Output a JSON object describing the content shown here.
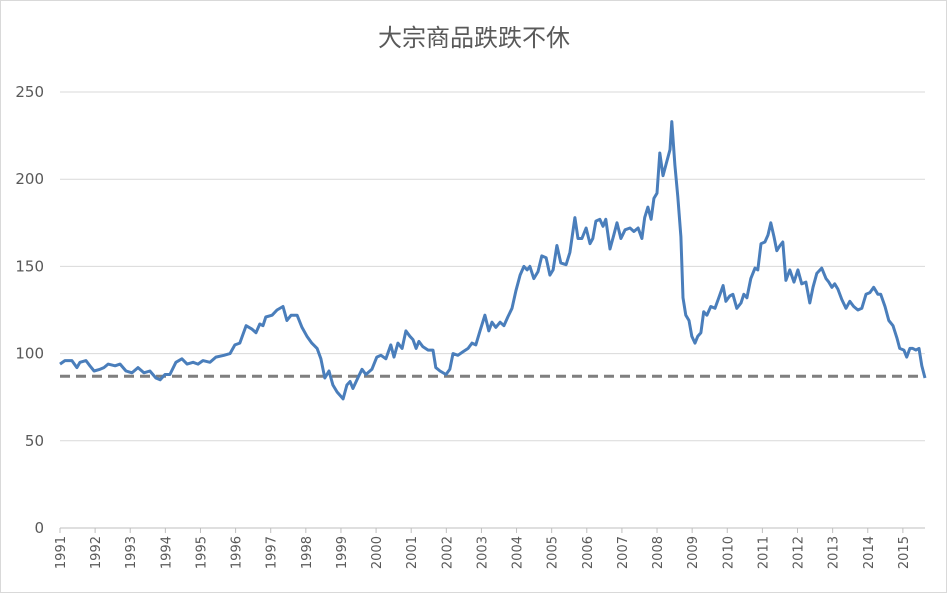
{
  "chart_data": {
    "type": "line",
    "title": "大宗商品跌跌不休",
    "x": [
      1991.0,
      1991.14,
      1991.34,
      1991.48,
      1991.57,
      1991.74,
      1991.85,
      1991.97,
      1992.14,
      1992.25,
      1992.37,
      1992.57,
      1992.71,
      1992.88,
      1993.05,
      1993.22,
      1993.39,
      1993.56,
      1993.73,
      1993.85,
      1993.99,
      1994.13,
      1994.3,
      1994.47,
      1994.62,
      1994.79,
      1994.93,
      1995.07,
      1995.27,
      1995.44,
      1995.67,
      1995.84,
      1995.98,
      1996.12,
      1996.3,
      1996.47,
      1996.58,
      1996.69,
      1996.78,
      1996.86,
      1997.04,
      1997.18,
      1997.35,
      1997.46,
      1997.58,
      1997.75,
      1997.89,
      1998.03,
      1998.17,
      1998.32,
      1998.43,
      1998.54,
      1998.66,
      1998.77,
      1998.89,
      1999.06,
      1999.17,
      1999.26,
      1999.34,
      1999.48,
      1999.6,
      1999.71,
      1999.88,
      2000.02,
      2000.14,
      2000.28,
      2000.42,
      2000.51,
      2000.62,
      2000.74,
      2000.85,
      2000.96,
      2001.05,
      2001.14,
      2001.22,
      2001.33,
      2001.48,
      2001.62,
      2001.7,
      2001.82,
      2001.99,
      2002.1,
      2002.19,
      2002.33,
      2002.47,
      2002.62,
      2002.73,
      2002.84,
      2002.96,
      2003.1,
      2003.21,
      2003.3,
      2003.41,
      2003.53,
      2003.64,
      2003.75,
      2003.87,
      2003.98,
      2004.1,
      2004.21,
      2004.3,
      2004.38,
      2004.49,
      2004.61,
      2004.72,
      2004.84,
      2004.95,
      2005.04,
      2005.15,
      2005.26,
      2005.41,
      2005.52,
      2005.66,
      2005.75,
      2005.86,
      2005.98,
      2006.09,
      2006.17,
      2006.26,
      2006.37,
      2006.46,
      2006.54,
      2006.66,
      2006.77,
      2006.86,
      2006.97,
      2007.09,
      2007.23,
      2007.34,
      2007.46,
      2007.57,
      2007.65,
      2007.74,
      2007.83,
      2007.91,
      2008.0,
      2008.08,
      2008.17,
      2008.25,
      2008.37,
      2008.42,
      2008.51,
      2008.59,
      2008.68,
      2008.74,
      2008.82,
      2008.91,
      2008.99,
      2009.08,
      2009.16,
      2009.25,
      2009.33,
      2009.42,
      2009.53,
      2009.65,
      2009.76,
      2009.88,
      2009.96,
      2010.07,
      2010.16,
      2010.27,
      2010.39,
      2010.47,
      2010.56,
      2010.67,
      2010.79,
      2010.87,
      2010.96,
      2011.07,
      2011.16,
      2011.24,
      2011.33,
      2011.41,
      2011.5,
      2011.58,
      2011.67,
      2011.78,
      2011.9,
      2012.01,
      2012.12,
      2012.24,
      2012.35,
      2012.44,
      2012.55,
      2012.69,
      2012.81,
      2012.89,
      2012.98,
      2013.06,
      2013.15,
      2013.26,
      2013.38,
      2013.49,
      2013.6,
      2013.72,
      2013.83,
      2013.95,
      2014.06,
      2014.17,
      2014.29,
      2014.37,
      2014.49,
      2014.6,
      2014.72,
      2014.83,
      2014.91,
      2015.03,
      2015.11,
      2015.2,
      2015.28,
      2015.37,
      2015.46,
      2015.54,
      2015.63
    ],
    "values": [
      94,
      96,
      96,
      92,
      95,
      96,
      93,
      90,
      91,
      92,
      94,
      93,
      94,
      90,
      89,
      92,
      89,
      90,
      86,
      85,
      88,
      88,
      95,
      97,
      94,
      95,
      94,
      96,
      95,
      98,
      99,
      100,
      105,
      106,
      116,
      114,
      112,
      117,
      116,
      121,
      122,
      125,
      127,
      119,
      122,
      122,
      115,
      110,
      106,
      103,
      97,
      86,
      90,
      82,
      78,
      74,
      82,
      84,
      80,
      86,
      91,
      88,
      91,
      98,
      99,
      97,
      105,
      98,
      106,
      103,
      113,
      110,
      108,
      103,
      107,
      104,
      102,
      102,
      92,
      90,
      88,
      91,
      100,
      99,
      101,
      103,
      106,
      105,
      113,
      122,
      113,
      118,
      115,
      118,
      116,
      121,
      126,
      136,
      145,
      150,
      148,
      150,
      143,
      147,
      156,
      155,
      145,
      148,
      162,
      152,
      151,
      158,
      178,
      166,
      166,
      172,
      163,
      166,
      176,
      177,
      173,
      177,
      160,
      168,
      175,
      166,
      171,
      172,
      170,
      172,
      166,
      178,
      184,
      177,
      189,
      192,
      215,
      202,
      208,
      217,
      233,
      208,
      190,
      167,
      132,
      122,
      119,
      110,
      106,
      110,
      112,
      124,
      122,
      127,
      126,
      132,
      139,
      130,
      133,
      134,
      126,
      129,
      134,
      132,
      143,
      149,
      148,
      163,
      164,
      168,
      175,
      167,
      159,
      162,
      164,
      142,
      148,
      141,
      148,
      140,
      141,
      129,
      138,
      146,
      149,
      143,
      141,
      138,
      140,
      137,
      131,
      126,
      130,
      127,
      125,
      126,
      134,
      135,
      138,
      134,
      134,
      127,
      119,
      116,
      109,
      103,
      102,
      98,
      103,
      103,
      102,
      103,
      93,
      86
    ],
    "color": "#4a7ebb",
    "reference_line": {
      "value": 87,
      "color": "#7f7f7f"
    },
    "xlim": [
      1991,
      2015.63
    ],
    "xticks": [
      1991,
      1992,
      1993,
      1994,
      1995,
      1996,
      1997,
      1998,
      1999,
      2000,
      2001,
      2002,
      2003,
      2004,
      2005,
      2006,
      2007,
      2008,
      2009,
      2010,
      2011,
      2012,
      2013,
      2014,
      2015
    ],
    "ylim": [
      0,
      250
    ],
    "yticks": [
      0,
      50,
      100,
      150,
      200,
      250
    ],
    "grid": true
  }
}
